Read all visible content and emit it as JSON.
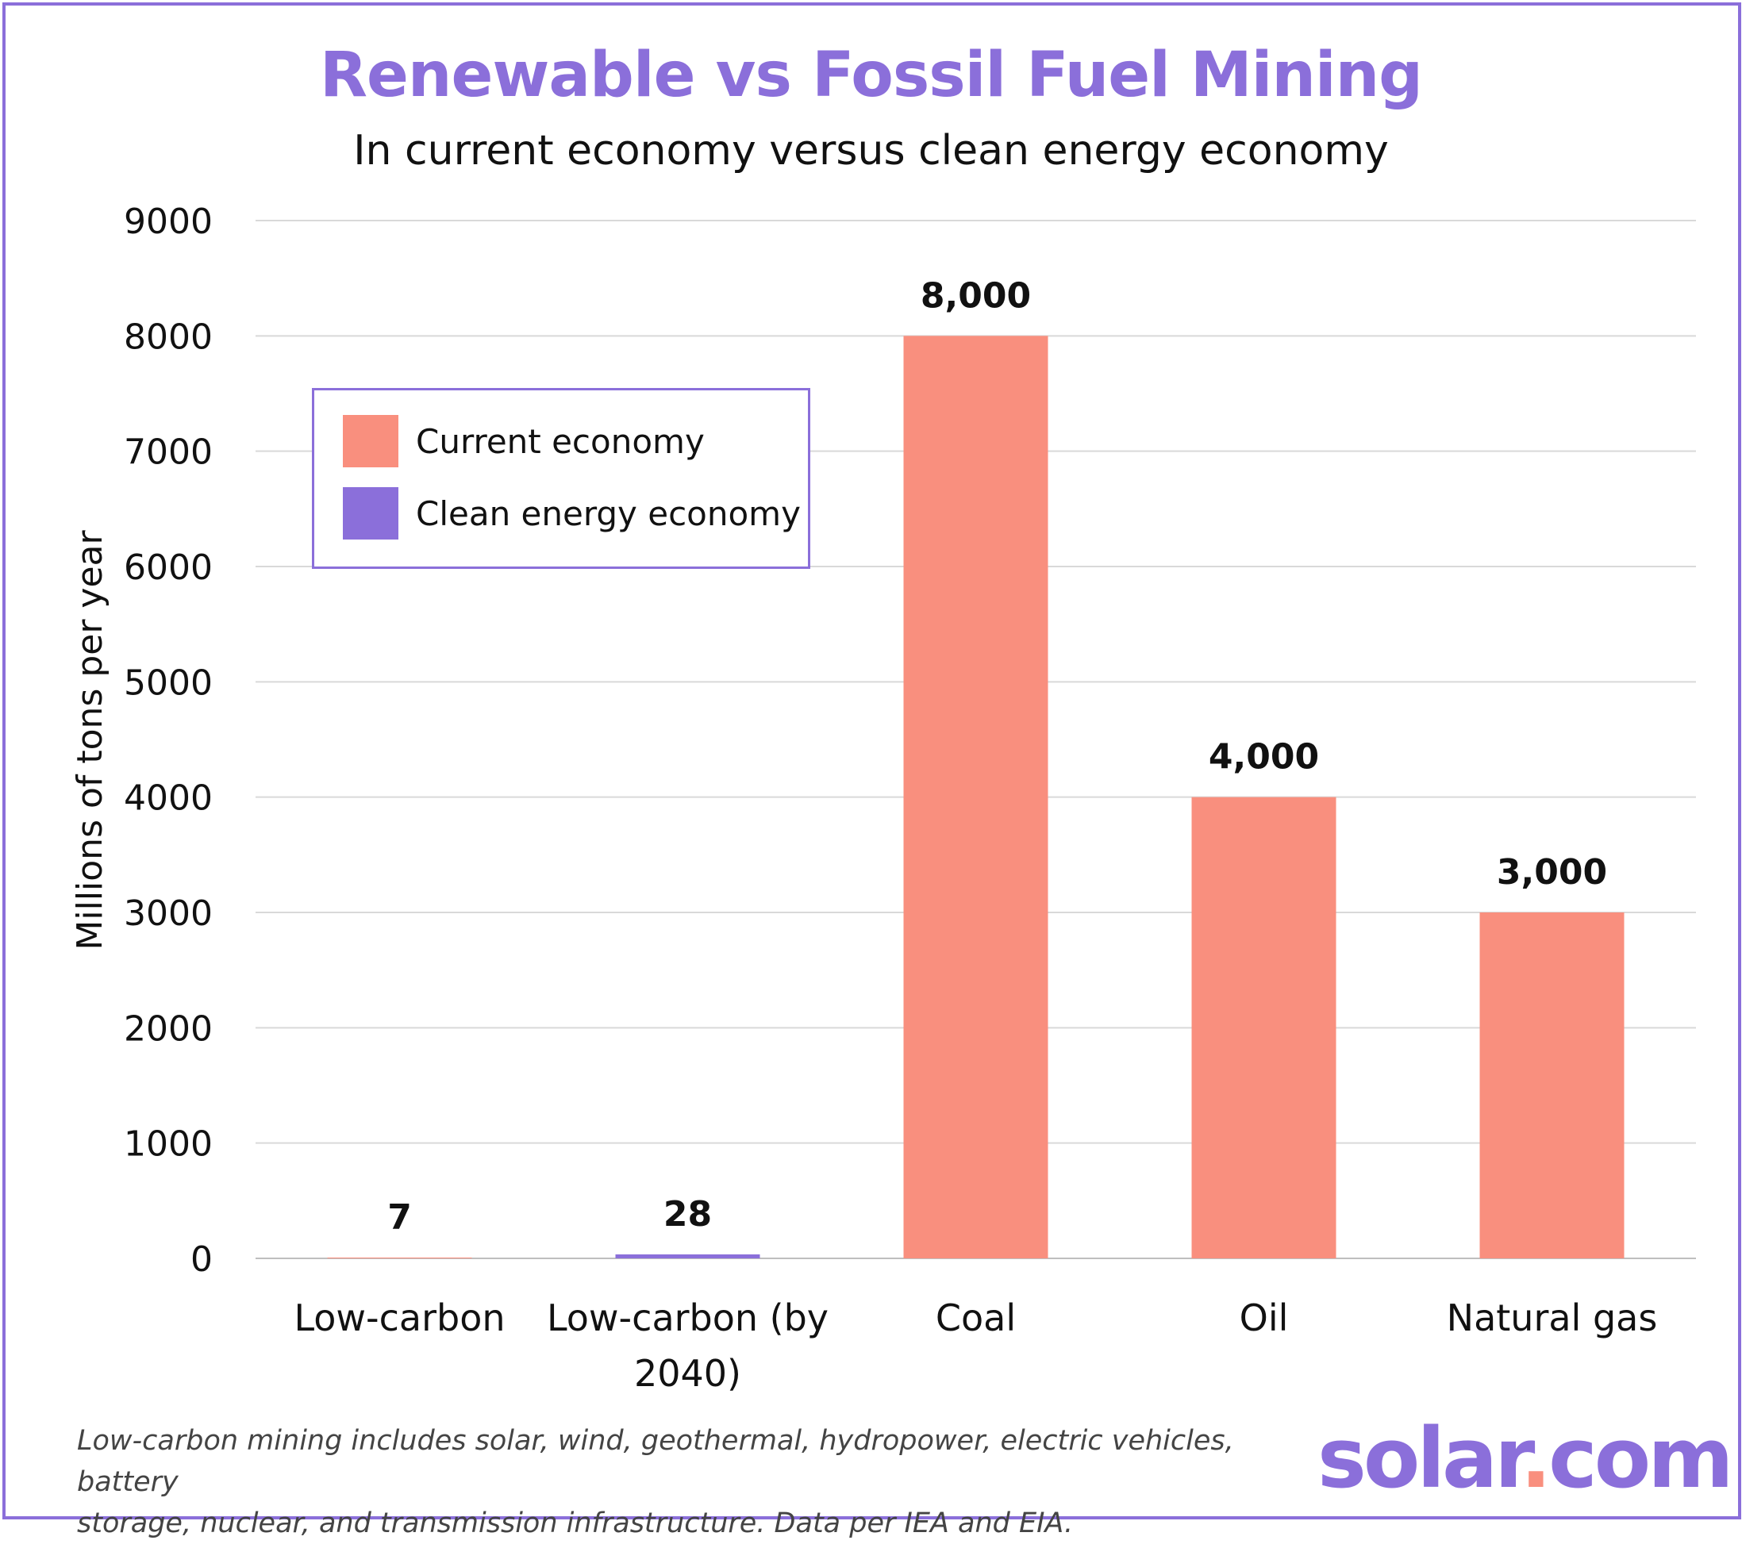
{
  "chart_data": {
    "type": "bar",
    "title": "Renewable vs Fossil Fuel Mining",
    "subtitle": "In current economy versus clean energy economy",
    "ylabel": "Millions of tons per year",
    "xlabel": "",
    "ylim": [
      0,
      9000
    ],
    "yticks": [
      0,
      1000,
      2000,
      3000,
      4000,
      5000,
      6000,
      7000,
      8000,
      9000
    ],
    "grid": true,
    "legend_position": "top-left",
    "categories": [
      [
        "Low-carbon"
      ],
      [
        "Low-carbon (by",
        "2040)"
      ],
      [
        "Coal"
      ],
      [
        "Oil"
      ],
      [
        "Natural gas"
      ]
    ],
    "series": [
      {
        "name": "Current economy",
        "color": "#F98F7E",
        "values": [
          7,
          null,
          8000,
          4000,
          3000
        ],
        "labels": [
          "7",
          "",
          "8,000",
          "4,000",
          "3,000"
        ]
      },
      {
        "name": "Clean energy economy",
        "color": "#8B6FDA",
        "values": [
          null,
          28,
          null,
          null,
          null
        ],
        "labels": [
          "",
          "28",
          "",
          "",
          ""
        ]
      }
    ]
  },
  "footnote": {
    "line1": "Low-carbon mining includes solar, wind, geothermal, hydropower, electric vehicles, battery",
    "line2": "storage, nuclear, and transmission infrastructure. Data per IEA and EIA."
  },
  "logo": {
    "part1": "solar",
    "dot": ".",
    "part2": "com"
  },
  "colors": {
    "accent": "#8B6FDA",
    "bar_current": "#F98F7E",
    "bar_clean": "#8B6FDA",
    "grid": "#D9D9D9"
  }
}
